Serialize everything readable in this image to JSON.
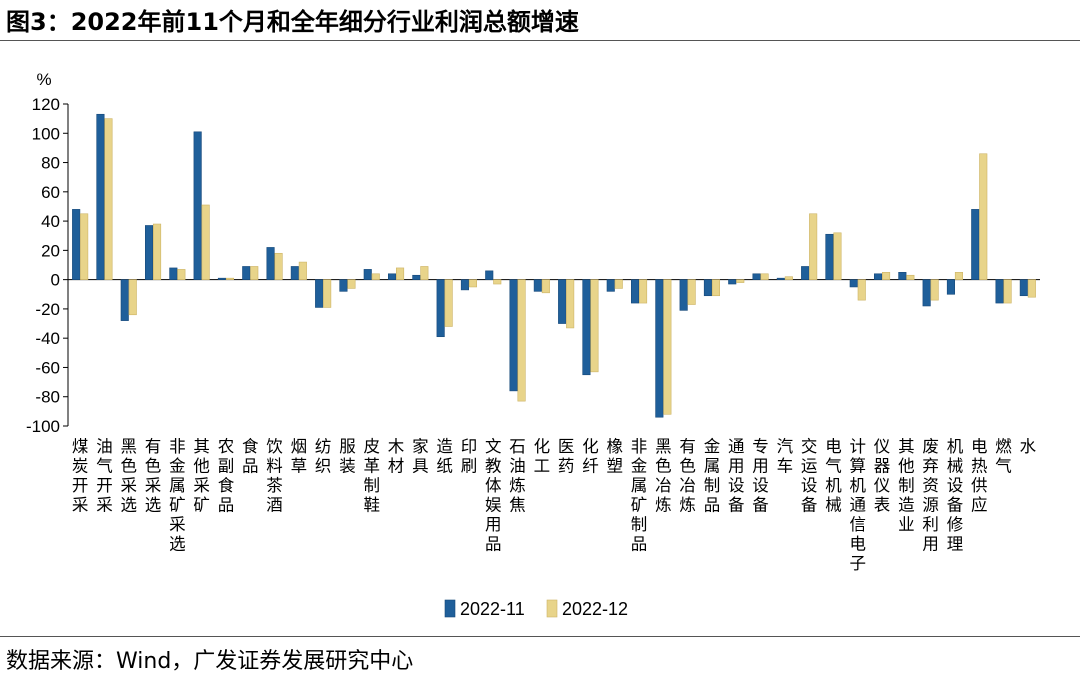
{
  "title": "图3：2022年前11个月和全年细分行业利润总额增速",
  "source": "数据来源：Wind，广发证券发展研究中心",
  "colors": {
    "s1": "#1f5f9a",
    "s2": "#e8d48a",
    "s1_edge": "#17497a",
    "s2_edge": "#cdb466",
    "axis": "#000000"
  },
  "chart_data": {
    "type": "bar",
    "title": "2022年前11个月和全年细分行业利润总额增速",
    "ylabel": "%",
    "xlabel": "",
    "ylim": [
      -100,
      120
    ],
    "yticks": [
      -100,
      -80,
      -60,
      -40,
      -20,
      0,
      20,
      40,
      60,
      80,
      100,
      120
    ],
    "grid": false,
    "legend_position": "bottom-center",
    "categories": [
      "煤炭开采",
      "油气开采",
      "黑色采选",
      "有色采选",
      "非金属矿采选",
      "其他采矿",
      "农副食品",
      "食品",
      "饮料茶酒",
      "烟草",
      "纺织",
      "服装",
      "皮革制鞋",
      "木材",
      "家具",
      "造纸",
      "印刷",
      "文教体娱用品",
      "石油炼焦",
      "化工",
      "医药",
      "化纤",
      "橡塑",
      "非金属矿制品",
      "黑色冶炼",
      "有色冶炼",
      "金属制品",
      "通用设备",
      "专用设备",
      "汽车",
      "交运设备",
      "电气机械",
      "计算机通信电子",
      "仪器仪表",
      "其他制造业",
      "废弃资源利用",
      "机械设备修理",
      "电热供应",
      "燃气",
      "水"
    ],
    "series": [
      {
        "name": "2022-11",
        "values": [
          48,
          113,
          -28,
          37,
          8,
          101,
          1,
          9,
          22,
          9,
          -19,
          -8,
          7,
          4,
          3,
          -39,
          -7,
          6,
          -76,
          -8,
          -30,
          -65,
          -8,
          -16,
          -94,
          -21,
          -11,
          -3,
          4,
          1,
          9,
          31,
          -5,
          4,
          5,
          -18,
          -10,
          48,
          -16,
          -11
        ]
      },
      {
        "name": "2022-12",
        "values": [
          45,
          110,
          -24,
          38,
          7,
          51,
          1,
          9,
          18,
          12,
          -19,
          -6,
          4,
          8,
          9,
          -32,
          -5,
          -3,
          -83,
          -9,
          -33,
          -63,
          -6,
          -16,
          -92,
          -17,
          -11,
          -2,
          4,
          2,
          45,
          32,
          -14,
          5,
          3,
          -14,
          5,
          86,
          -16,
          -12
        ]
      }
    ]
  }
}
